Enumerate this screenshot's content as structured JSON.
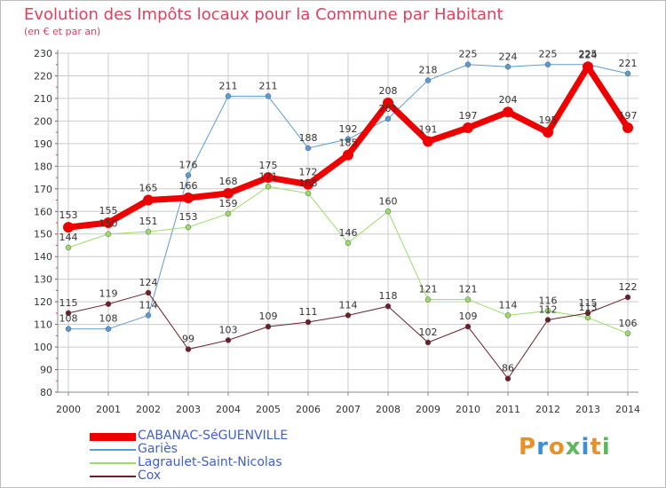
{
  "title": "Evolution des Impôts locaux pour la Commune par Habitant",
  "subtitle": "(en € et par an)",
  "logo": "Proxiti",
  "colors": {
    "title": "#e0405e",
    "legend_text": "#3f5fd0",
    "grid": "#cccccc"
  },
  "chart_data": {
    "type": "line",
    "title": "Evolution des Impôts locaux pour la Commune par Habitant",
    "subtitle": "(en € et par an)",
    "xlabel": "",
    "ylabel": "",
    "ylim": [
      80,
      230
    ],
    "yticks": [
      80,
      90,
      100,
      110,
      120,
      130,
      140,
      150,
      160,
      170,
      180,
      190,
      200,
      210,
      220,
      230
    ],
    "grid": true,
    "legend_position": "bottom-left",
    "categories": [
      "2000",
      "2001",
      "2002",
      "2003",
      "2004",
      "2005",
      "2006",
      "2007",
      "2008",
      "2009",
      "2010",
      "2011",
      "2012",
      "2013",
      "2014"
    ],
    "series": [
      {
        "name": "CABANAC-SéGUENVILLE",
        "color": "#ee0000",
        "width": 7,
        "marker": 6,
        "values": [
          153,
          155,
          165,
          166,
          168,
          175,
          172,
          185,
          208,
          191,
          197,
          204,
          195,
          224,
          197
        ],
        "labels": [
          "153",
          "155",
          "165",
          "166",
          "168",
          "175",
          "172",
          "185",
          "208",
          "191",
          "197",
          "204",
          "195",
          "224",
          "197"
        ]
      },
      {
        "name": "Gariès",
        "color": "#5b9bd5",
        "width": 1,
        "marker": 3,
        "values": [
          108,
          108,
          114,
          176,
          211,
          211,
          188,
          192,
          201,
          218,
          225,
          224,
          225,
          225,
          221
        ],
        "labels": [
          "108",
          "108",
          "114",
          "176",
          "211",
          "211",
          "188",
          "192",
          "201",
          "218",
          "225",
          "224",
          "225",
          "225",
          "221"
        ]
      },
      {
        "name": "Lagraulet-Saint-Nicolas",
        "color": "#99dd66",
        "width": 1,
        "marker": 3,
        "values": [
          144,
          150,
          151,
          153,
          159,
          171,
          168,
          146,
          160,
          121,
          121,
          114,
          116,
          113,
          106
        ],
        "labels": [
          "144",
          "150",
          "151",
          "153",
          "159",
          "171",
          "168",
          "146",
          "160",
          "121",
          "121",
          "114",
          "116",
          "113",
          "106"
        ]
      },
      {
        "name": "Cox",
        "color": "#6a1f2a",
        "width": 1,
        "marker": 3,
        "values": [
          115,
          119,
          124,
          99,
          103,
          109,
          111,
          114,
          118,
          102,
          109,
          86,
          112,
          115,
          122
        ],
        "labels": [
          "115",
          "119",
          "124",
          "99",
          "103",
          "109",
          "111",
          "114",
          "118",
          "102",
          "109",
          "86",
          "112",
          "115",
          "122"
        ]
      }
    ]
  }
}
